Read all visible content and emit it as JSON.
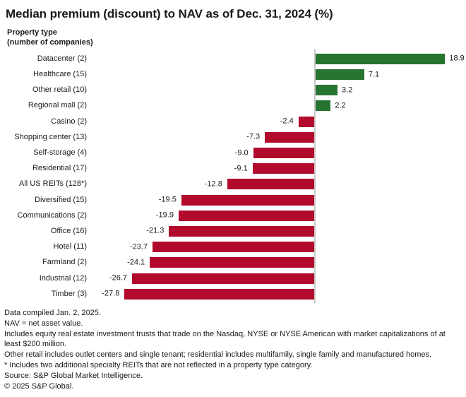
{
  "title": "Median premium (discount) to NAV as of Dec. 31, 2024 (%)",
  "chart_data": {
    "type": "bar",
    "orientation": "horizontal",
    "title": "Median premium (discount) to NAV as of Dec. 31, 2024 (%)",
    "ylabel_lines": [
      "Property type",
      "(number of companies)"
    ],
    "categories": [
      "Datacenter (2)",
      "Healthcare (15)",
      "Other retail (10)",
      "Regional mall (2)",
      "Casino (2)",
      "Shopping center (13)",
      "Self-storage (4)",
      "Residential (17)",
      "All US REITs (128*)",
      "Diversified (15)",
      "Communications (2)",
      "Office (16)",
      "Hotel (11)",
      "Farmland (2)",
      "Industrial (12)",
      "Timber (3)"
    ],
    "values": [
      18.9,
      7.1,
      3.2,
      2.2,
      -2.4,
      -7.3,
      -9.0,
      -9.1,
      -12.8,
      -19.5,
      -19.9,
      -21.3,
      -23.7,
      -24.1,
      -26.7,
      -27.8
    ],
    "value_labels": [
      "18.9",
      "7.1",
      "3.2",
      "2.2",
      "-2.4",
      "-7.3",
      "-9.0",
      "-9.1",
      "-12.8",
      "-19.5",
      "-19.9",
      "-21.3",
      "-23.7",
      "-24.1",
      "-26.7",
      "-27.8"
    ],
    "xlim": [
      -33,
      21
    ],
    "grid": false,
    "legend": false,
    "positive_color": "#277330",
    "negative_color": "#b10a2d",
    "axis_line_color": "#c9c9c9",
    "label_color": "#1a1a1a"
  },
  "footnotes": [
    "Data compiled Jan. 2, 2025.",
    "NAV = net asset value.",
    "Includes equity real estate investment trusts that trade on the Nasdaq, NYSE or NYSE American with market capitalizations of at least $200 million.",
    "Other retail includes outlet centers and single tenant; residential includes multifamily, single family and manufactured homes.",
    "* Includes two additional specialty REITs that are not reflected in a property type category.",
    "Source: S&P Global Market Intelligence.",
    "© 2025 S&P Global."
  ]
}
